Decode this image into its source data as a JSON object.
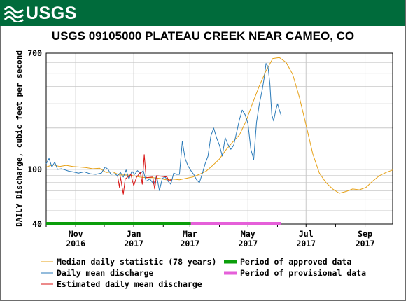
{
  "banner": {
    "logo_text": "USGS",
    "logo_icon": "usgs-wave-icon",
    "color": "#006b3b"
  },
  "chart_data": {
    "type": "line",
    "title": "USGS 09105000 PLATEAU CREEK NEAR CAMEO, CO",
    "ylabel": "DAILY Discharge, cubic feet per second",
    "xlabel": "",
    "yscale": "log",
    "ylim": [
      40,
      700
    ],
    "yticks": [
      "40",
      "100",
      "700"
    ],
    "xlim": [
      "2016-10-01",
      "2017-09-30"
    ],
    "xticks": [
      {
        "date": "2016-11-01",
        "month": "Nov",
        "year": "2016"
      },
      {
        "date": "2017-01-01",
        "month": "Jan",
        "year": "2017"
      },
      {
        "date": "2017-03-01",
        "month": "Mar",
        "year": "2017"
      },
      {
        "date": "2017-05-01",
        "month": "May",
        "year": "2017"
      },
      {
        "date": "2017-07-01",
        "month": "Jul",
        "year": "2017"
      },
      {
        "date": "2017-09-01",
        "month": "Sep",
        "year": "2017"
      }
    ],
    "grid": true,
    "legend_position": "bottom",
    "colors": {
      "median": "#e6a117",
      "daily": "#2a7ab8",
      "estimated": "#d81414",
      "approved": "#0b9e0b",
      "provisional": "#e55fd9"
    },
    "series": [
      {
        "name": "Median daily statistic (78 years)",
        "key": "median",
        "points": [
          [
            "2016-10-01",
            104
          ],
          [
            "2016-10-08",
            108
          ],
          [
            "2016-10-15",
            105
          ],
          [
            "2016-10-22",
            107
          ],
          [
            "2016-10-29",
            105
          ],
          [
            "2016-11-05",
            104
          ],
          [
            "2016-11-12",
            103
          ],
          [
            "2016-11-19",
            101
          ],
          [
            "2016-11-26",
            102
          ],
          [
            "2016-12-03",
            95
          ],
          [
            "2016-12-10",
            96
          ],
          [
            "2016-12-17",
            91
          ],
          [
            "2016-12-24",
            91
          ],
          [
            "2016-12-31",
            90
          ],
          [
            "2017-01-07",
            88
          ],
          [
            "2017-01-14",
            87
          ],
          [
            "2017-01-21",
            87
          ],
          [
            "2017-01-28",
            86
          ],
          [
            "2017-02-04",
            84
          ],
          [
            "2017-02-11",
            85
          ],
          [
            "2017-02-18",
            84
          ],
          [
            "2017-02-25",
            86
          ],
          [
            "2017-03-04",
            88
          ],
          [
            "2017-03-11",
            92
          ],
          [
            "2017-03-18",
            97
          ],
          [
            "2017-03-25",
            107
          ],
          [
            "2017-04-01",
            119
          ],
          [
            "2017-04-08",
            139
          ],
          [
            "2017-04-15",
            158
          ],
          [
            "2017-04-22",
            178
          ],
          [
            "2017-04-29",
            225
          ],
          [
            "2017-05-06",
            305
          ],
          [
            "2017-05-13",
            405
          ],
          [
            "2017-05-20",
            520
          ],
          [
            "2017-05-27",
            640
          ],
          [
            "2017-06-03",
            650
          ],
          [
            "2017-06-10",
            600
          ],
          [
            "2017-06-17",
            490
          ],
          [
            "2017-06-24",
            335
          ],
          [
            "2017-07-01",
            210
          ],
          [
            "2017-07-08",
            130
          ],
          [
            "2017-07-15",
            94
          ],
          [
            "2017-07-22",
            80
          ],
          [
            "2017-07-29",
            72
          ],
          [
            "2017-08-05",
            67
          ],
          [
            "2017-08-12",
            69
          ],
          [
            "2017-08-19",
            72
          ],
          [
            "2017-08-26",
            71
          ],
          [
            "2017-09-02",
            74
          ],
          [
            "2017-09-09",
            82
          ],
          [
            "2017-09-16",
            90
          ],
          [
            "2017-09-23",
            95
          ],
          [
            "2017-09-30",
            99
          ]
        ]
      },
      {
        "name": "Daily mean discharge",
        "key": "daily",
        "points": [
          [
            "2016-10-01",
            110
          ],
          [
            "2016-10-04",
            120
          ],
          [
            "2016-10-07",
            104
          ],
          [
            "2016-10-10",
            113
          ],
          [
            "2016-10-13",
            100
          ],
          [
            "2016-10-17",
            101
          ],
          [
            "2016-10-21",
            99
          ],
          [
            "2016-10-25",
            97
          ],
          [
            "2016-10-29",
            96
          ],
          [
            "2016-11-04",
            94
          ],
          [
            "2016-11-10",
            96
          ],
          [
            "2016-11-16",
            93
          ],
          [
            "2016-11-22",
            92
          ],
          [
            "2016-11-28",
            94
          ],
          [
            "2016-12-02",
            104
          ],
          [
            "2016-12-05",
            100
          ],
          [
            "2016-12-08",
            92
          ],
          [
            "2016-12-12",
            93
          ],
          [
            "2016-12-15",
            90
          ],
          [
            "2016-12-18",
            95
          ],
          [
            "2016-12-21",
            88
          ],
          [
            "2016-12-24",
            99
          ],
          [
            "2016-12-27",
            85
          ],
          [
            "2016-12-30",
            97
          ],
          [
            "2017-01-02",
            92
          ],
          [
            "2017-01-05",
            98
          ],
          [
            "2017-01-08",
            93
          ],
          [
            "2017-01-11",
            98
          ],
          [
            "2017-01-14",
            82
          ],
          [
            "2017-01-18",
            85
          ],
          [
            "2017-01-22",
            78
          ],
          [
            "2017-01-25",
            90
          ],
          [
            "2017-01-28",
            70
          ],
          [
            "2017-01-31",
            86
          ],
          [
            "2017-02-03",
            88
          ],
          [
            "2017-02-06",
            82
          ],
          [
            "2017-02-09",
            78
          ],
          [
            "2017-02-12",
            94
          ],
          [
            "2017-02-15",
            92
          ],
          [
            "2017-02-18",
            92
          ],
          [
            "2017-02-21",
            160
          ],
          [
            "2017-02-24",
            120
          ],
          [
            "2017-02-27",
            106
          ],
          [
            "2017-03-02",
            98
          ],
          [
            "2017-03-05",
            92
          ],
          [
            "2017-03-08",
            84
          ],
          [
            "2017-03-11",
            80
          ],
          [
            "2017-03-14",
            93
          ],
          [
            "2017-03-17",
            110
          ],
          [
            "2017-03-20",
            125
          ],
          [
            "2017-03-23",
            175
          ],
          [
            "2017-03-26",
            200
          ],
          [
            "2017-03-29",
            170
          ],
          [
            "2017-04-01",
            150
          ],
          [
            "2017-04-04",
            125
          ],
          [
            "2017-04-07",
            170
          ],
          [
            "2017-04-10",
            152
          ],
          [
            "2017-04-13",
            140
          ],
          [
            "2017-04-16",
            150
          ],
          [
            "2017-04-19",
            185
          ],
          [
            "2017-04-22",
            230
          ],
          [
            "2017-04-25",
            270
          ],
          [
            "2017-04-28",
            250
          ],
          [
            "2017-05-01",
            215
          ],
          [
            "2017-05-04",
            140
          ],
          [
            "2017-05-07",
            118
          ],
          [
            "2017-05-10",
            220
          ],
          [
            "2017-05-13",
            300
          ],
          [
            "2017-05-16",
            380
          ],
          [
            "2017-05-18",
            460
          ],
          [
            "2017-05-20",
            590
          ],
          [
            "2017-05-22",
            560
          ],
          [
            "2017-05-24",
            420
          ],
          [
            "2017-05-26",
            250
          ],
          [
            "2017-05-28",
            225
          ],
          [
            "2017-05-30",
            265
          ],
          [
            "2017-06-01",
            300
          ],
          [
            "2017-06-03",
            270
          ],
          [
            "2017-06-05",
            245
          ]
        ]
      },
      {
        "name": "Estimated daily mean discharge",
        "key": "estimated",
        "points": [
          [
            "2016-12-15",
            90
          ],
          [
            "2016-12-17",
            74
          ],
          [
            "2016-12-18",
            88
          ],
          [
            "2016-12-21",
            66
          ],
          [
            "2016-12-23",
            85
          ],
          [
            "2016-12-29",
            92
          ],
          [
            "2017-01-01",
            76
          ],
          [
            "2017-01-04",
            88
          ],
          [
            "2017-01-08",
            95
          ],
          [
            "2017-01-10",
            78
          ],
          [
            "2017-01-12",
            128
          ],
          [
            "2017-01-14",
            87
          ],
          [
            "2017-01-21",
            88
          ],
          [
            "2017-01-23",
            72
          ],
          [
            "2017-01-25",
            90
          ],
          [
            "2017-02-05",
            88
          ],
          [
            "2017-02-07",
            82
          ],
          [
            "2017-02-10",
            85
          ]
        ]
      }
    ],
    "periods": [
      {
        "name": "Period of approved data",
        "key": "approved",
        "start": "2016-10-01",
        "end": "2017-03-02"
      },
      {
        "name": "Period of provisional data",
        "key": "provisional",
        "start": "2017-03-02",
        "end": "2017-06-05"
      }
    ]
  }
}
